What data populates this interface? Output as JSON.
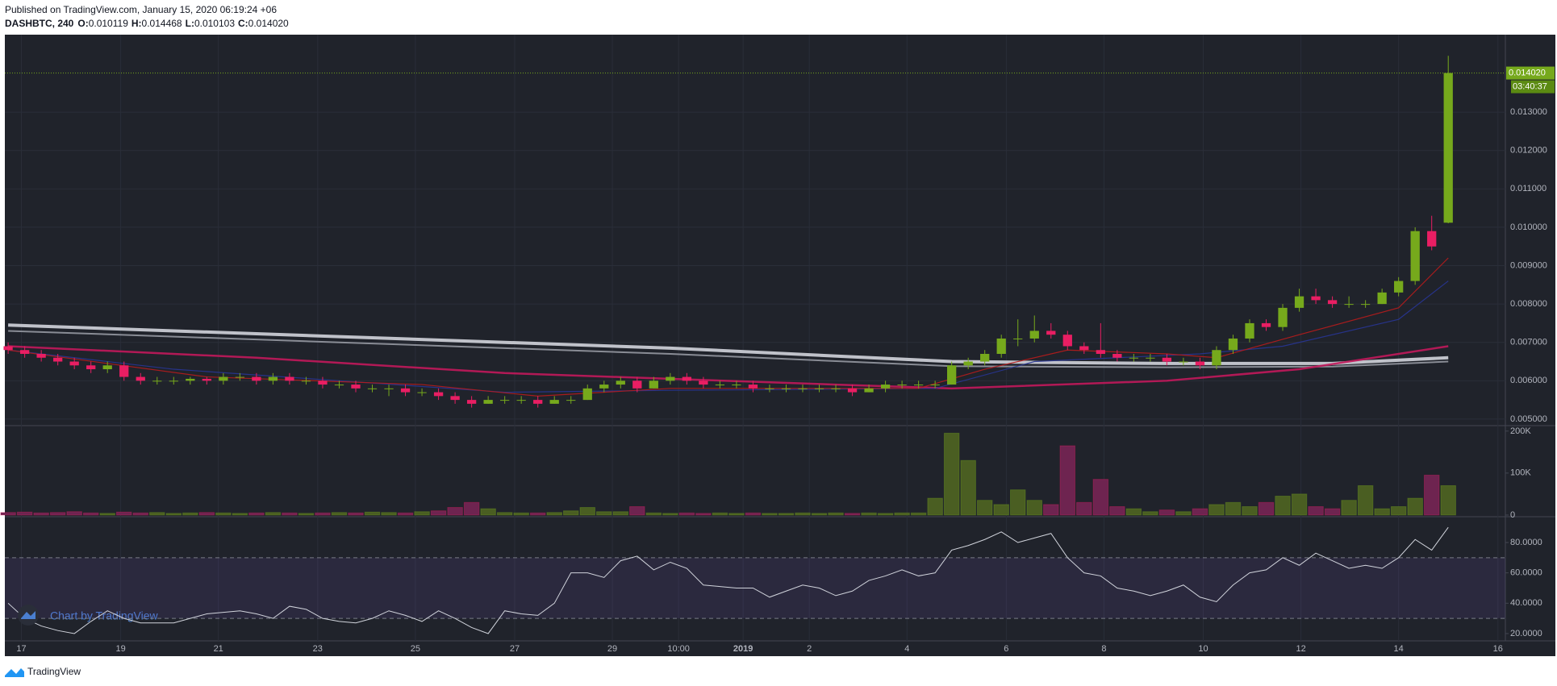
{
  "chart_data": {
    "type": "candlestick",
    "published": "Published on TradingView.com, January 15, 2020 06:19:24 +06",
    "symbol": "DASHBTC, 240",
    "ohlc": [
      {
        "label": "O:",
        "value": "0.010119"
      },
      {
        "label": "H:",
        "value": "0.014468"
      },
      {
        "label": "L:",
        "value": "0.010103"
      },
      {
        "label": "C:",
        "value": "0.014020"
      }
    ],
    "last_price": {
      "value": 0.01402,
      "label": "0.014020"
    },
    "countdown": "03:40:37",
    "watermark": "Chart by TradingView",
    "footer": "TradingView",
    "up_color": "#76a91c",
    "down_color": "#e91e63",
    "grid": true,
    "xlim": [
      -0.2,
      90.45
    ],
    "xticks": [
      {
        "value": 0.8,
        "label": "17"
      },
      {
        "value": 6.8,
        "label": "19"
      },
      {
        "value": 12.7,
        "label": "21"
      },
      {
        "value": 18.7,
        "label": "23"
      },
      {
        "value": 24.6,
        "label": "25"
      },
      {
        "value": 30.6,
        "label": "27"
      },
      {
        "value": 36.5,
        "label": "29"
      },
      {
        "value": 40.5,
        "label": "10:00"
      },
      {
        "value": 44.4,
        "label": "2019"
      },
      {
        "value": 48.4,
        "label": "2"
      },
      {
        "value": 54.3,
        "label": "4"
      },
      {
        "value": 60.3,
        "label": "6"
      },
      {
        "value": 66.2,
        "label": "8"
      },
      {
        "value": 72.2,
        "label": "10"
      },
      {
        "value": 78.1,
        "label": "12"
      },
      {
        "value": 84,
        "label": "14"
      },
      {
        "value": 90,
        "label": "16"
      }
    ],
    "ylim": [
      0.00483,
      0.01502
    ],
    "yticks": [
      {
        "value": 0.005,
        "label": "0.005000"
      },
      {
        "value": 0.006,
        "label": "0.006000"
      },
      {
        "value": 0.007,
        "label": "0.007000"
      },
      {
        "value": 0.008,
        "label": "0.008000"
      },
      {
        "value": 0.009,
        "label": "0.009000"
      },
      {
        "value": 0.01,
        "label": "0.010000"
      },
      {
        "value": 0.011,
        "label": "0.011000"
      },
      {
        "value": 0.012,
        "label": "0.012000"
      },
      {
        "value": 0.013,
        "label": "0.013000"
      }
    ],
    "candles": [
      [
        0.0069,
        0.007,
        0.0067,
        0.0068
      ],
      [
        0.0068,
        0.0069,
        0.0066,
        0.0067
      ],
      [
        0.0067,
        0.0068,
        0.0065,
        0.0066
      ],
      [
        0.0066,
        0.0067,
        0.0064,
        0.0065
      ],
      [
        0.0065,
        0.0066,
        0.0063,
        0.0064
      ],
      [
        0.0064,
        0.0065,
        0.0062,
        0.0063
      ],
      [
        0.0063,
        0.0065,
        0.0062,
        0.0064
      ],
      [
        0.0064,
        0.0065,
        0.006,
        0.0061
      ],
      [
        0.0061,
        0.0062,
        0.0059,
        0.006
      ],
      [
        0.006,
        0.0061,
        0.0059,
        0.006
      ],
      [
        0.006,
        0.0061,
        0.0059,
        0.006
      ],
      [
        0.006,
        0.0061,
        0.0059,
        0.00605
      ],
      [
        0.00605,
        0.0061,
        0.0059,
        0.006
      ],
      [
        0.006,
        0.0062,
        0.0059,
        0.0061
      ],
      [
        0.0061,
        0.0062,
        0.006,
        0.0061
      ],
      [
        0.0061,
        0.0062,
        0.0059,
        0.006
      ],
      [
        0.006,
        0.0062,
        0.0059,
        0.0061
      ],
      [
        0.0061,
        0.0062,
        0.0059,
        0.006
      ],
      [
        0.006,
        0.0061,
        0.0059,
        0.006
      ],
      [
        0.006,
        0.0061,
        0.0058,
        0.0059
      ],
      [
        0.0059,
        0.006,
        0.0058,
        0.0059
      ],
      [
        0.0059,
        0.006,
        0.0057,
        0.0058
      ],
      [
        0.0058,
        0.0059,
        0.0057,
        0.0058
      ],
      [
        0.0058,
        0.0059,
        0.0056,
        0.0058
      ],
      [
        0.0058,
        0.0059,
        0.0056,
        0.0057
      ],
      [
        0.0057,
        0.0058,
        0.0056,
        0.0057
      ],
      [
        0.0057,
        0.0058,
        0.0055,
        0.0056
      ],
      [
        0.0056,
        0.0057,
        0.0054,
        0.0055
      ],
      [
        0.0055,
        0.0056,
        0.0053,
        0.0054
      ],
      [
        0.0054,
        0.0056,
        0.0054,
        0.0055
      ],
      [
        0.0055,
        0.0056,
        0.0054,
        0.0055
      ],
      [
        0.0055,
        0.0056,
        0.0054,
        0.0055
      ],
      [
        0.0055,
        0.0056,
        0.0053,
        0.0054
      ],
      [
        0.0054,
        0.0056,
        0.0054,
        0.0055
      ],
      [
        0.0055,
        0.0056,
        0.0054,
        0.0055
      ],
      [
        0.0055,
        0.0059,
        0.0055,
        0.0058
      ],
      [
        0.0058,
        0.006,
        0.0057,
        0.0059
      ],
      [
        0.0059,
        0.0061,
        0.0058,
        0.006
      ],
      [
        0.006,
        0.0061,
        0.0057,
        0.0058
      ],
      [
        0.0058,
        0.0061,
        0.0058,
        0.006
      ],
      [
        0.006,
        0.0062,
        0.0059,
        0.0061
      ],
      [
        0.0061,
        0.0062,
        0.0059,
        0.006
      ],
      [
        0.006,
        0.0061,
        0.0058,
        0.0059
      ],
      [
        0.0059,
        0.006,
        0.0058,
        0.0059
      ],
      [
        0.0059,
        0.006,
        0.0058,
        0.0059
      ],
      [
        0.0059,
        0.006,
        0.0057,
        0.0058
      ],
      [
        0.0058,
        0.0059,
        0.0057,
        0.0058
      ],
      [
        0.0058,
        0.0059,
        0.0057,
        0.0058
      ],
      [
        0.0058,
        0.0059,
        0.0057,
        0.0058
      ],
      [
        0.0058,
        0.0059,
        0.0057,
        0.0058
      ],
      [
        0.0058,
        0.0059,
        0.0057,
        0.0058
      ],
      [
        0.0058,
        0.0059,
        0.0056,
        0.0057
      ],
      [
        0.0057,
        0.0059,
        0.0057,
        0.0058
      ],
      [
        0.0058,
        0.006,
        0.0057,
        0.0059
      ],
      [
        0.0059,
        0.006,
        0.0058,
        0.0059
      ],
      [
        0.0059,
        0.006,
        0.0058,
        0.0059
      ],
      [
        0.0059,
        0.006,
        0.0058,
        0.0059
      ],
      [
        0.0059,
        0.0065,
        0.0059,
        0.0064
      ],
      [
        0.0064,
        0.0066,
        0.0063,
        0.0065
      ],
      [
        0.0065,
        0.0068,
        0.0064,
        0.0067
      ],
      [
        0.0067,
        0.0072,
        0.0066,
        0.0071
      ],
      [
        0.0071,
        0.0076,
        0.0069,
        0.0071
      ],
      [
        0.0071,
        0.0077,
        0.007,
        0.0073
      ],
      [
        0.0073,
        0.0075,
        0.0071,
        0.0072
      ],
      [
        0.0072,
        0.0073,
        0.0068,
        0.0069
      ],
      [
        0.0069,
        0.007,
        0.0067,
        0.0068
      ],
      [
        0.0068,
        0.0075,
        0.0066,
        0.0067
      ],
      [
        0.0067,
        0.0068,
        0.0065,
        0.0066
      ],
      [
        0.0066,
        0.0067,
        0.0065,
        0.0066
      ],
      [
        0.0066,
        0.0067,
        0.0065,
        0.0066
      ],
      [
        0.0066,
        0.0067,
        0.0064,
        0.0065
      ],
      [
        0.0065,
        0.0066,
        0.0064,
        0.0065
      ],
      [
        0.0065,
        0.0066,
        0.0063,
        0.0064
      ],
      [
        0.0064,
        0.0069,
        0.0063,
        0.0068
      ],
      [
        0.0068,
        0.0072,
        0.0067,
        0.0071
      ],
      [
        0.0071,
        0.0076,
        0.007,
        0.0075
      ],
      [
        0.0075,
        0.0076,
        0.0073,
        0.0074
      ],
      [
        0.0074,
        0.008,
        0.0073,
        0.0079
      ],
      [
        0.0079,
        0.0084,
        0.0078,
        0.0082
      ],
      [
        0.0082,
        0.0084,
        0.008,
        0.0081
      ],
      [
        0.0081,
        0.0082,
        0.0079,
        0.008
      ],
      [
        0.008,
        0.0082,
        0.0079,
        0.008
      ],
      [
        0.008,
        0.0081,
        0.0079,
        0.008
      ],
      [
        0.008,
        0.0084,
        0.008,
        0.0083
      ],
      [
        0.0083,
        0.0087,
        0.0082,
        0.0086
      ],
      [
        0.0086,
        0.01,
        0.0085,
        0.0099
      ],
      [
        0.0099,
        0.0103,
        0.0094,
        0.0095
      ],
      [
        0.010119,
        0.014468,
        0.010103,
        0.01402
      ]
    ],
    "moving_averages": [
      {
        "color": "#d1d4dc",
        "x": [
          0,
          20,
          40,
          57,
          70,
          80,
          87
        ],
        "values": [
          0.00745,
          0.00715,
          0.00685,
          0.0065,
          0.00645,
          0.00645,
          0.0066
        ]
      },
      {
        "color": "#9598a1",
        "x": [
          0,
          20,
          40,
          57,
          70,
          80,
          87
        ],
        "values": [
          0.0073,
          0.007,
          0.0067,
          0.00638,
          0.00635,
          0.00637,
          0.0065
        ]
      },
      {
        "color": "#c2185b",
        "x": [
          0,
          15,
          30,
          50,
          57,
          70,
          78,
          87
        ],
        "values": [
          0.0069,
          0.0066,
          0.0062,
          0.0059,
          0.0058,
          0.006,
          0.0063,
          0.0069
        ]
      },
      {
        "color": "#283593",
        "x": [
          0,
          10,
          30,
          40,
          56,
          62,
          72,
          77,
          84,
          87
        ],
        "values": [
          0.0068,
          0.0063,
          0.0057,
          0.00575,
          0.0058,
          0.0065,
          0.0067,
          0.0069,
          0.0076,
          0.0086
        ]
      },
      {
        "color": "#b71c1c",
        "x": [
          0,
          12,
          25,
          32,
          40,
          55,
          59,
          64,
          70,
          73,
          78,
          84,
          87
        ],
        "values": [
          0.0068,
          0.0061,
          0.0059,
          0.0056,
          0.0058,
          0.0058,
          0.0063,
          0.0068,
          0.0067,
          0.0066,
          0.0072,
          0.0079,
          0.0092
        ]
      }
    ],
    "volume": {
      "ylim": [
        -4000,
        213000
      ],
      "yticks": [
        0,
        {
          "value": 100000,
          "label": "100K"
        },
        {
          "value": 200000,
          "label": "200K"
        }
      ],
      "up_color": "#4a5e22",
      "down_color": "#6e2450",
      "values": [
        6000,
        7000,
        5000,
        6000,
        8000,
        5000,
        4000,
        7000,
        5000,
        6000,
        4000,
        5000,
        6000,
        5000,
        4000,
        5000,
        6000,
        5000,
        4000,
        5000,
        6000,
        5000,
        7000,
        6000,
        5000,
        8000,
        10000,
        18000,
        30000,
        15000,
        6000,
        5000,
        5000,
        6000,
        10000,
        18000,
        8000,
        8000,
        20000,
        5000,
        4000,
        5000,
        4000,
        5000,
        4000,
        5000,
        4000,
        4000,
        5000,
        4000,
        5000,
        4000,
        5000,
        4000,
        5000,
        5000,
        40000,
        195000,
        130000,
        35000,
        25000,
        60000,
        35000,
        25000,
        165000,
        30000,
        85000,
        20000,
        15000,
        8000,
        12000,
        8000,
        15000,
        25000,
        30000,
        20000,
        30000,
        45000,
        50000,
        20000,
        15000,
        35000,
        70000,
        15000,
        20000,
        40000,
        95000,
        70000
      ]
    },
    "rsi": {
      "color": "#d1d4dc",
      "ylim": [
        15.2,
        97
      ],
      "yticks": [
        {
          "value": 20,
          "label": "20.0000"
        },
        {
          "value": 40,
          "label": "40.0000"
        },
        {
          "value": 60,
          "label": "60.0000"
        },
        {
          "value": 80,
          "label": "80.0000"
        }
      ],
      "bands": [
        30,
        70
      ],
      "band_color": "#7e57c2",
      "values": [
        40,
        30,
        25,
        22,
        20,
        28,
        35,
        30,
        27,
        27,
        27,
        30,
        33,
        34,
        35,
        33,
        30,
        38,
        36,
        30,
        28,
        27,
        30,
        35,
        32,
        28,
        35,
        30,
        24,
        20,
        35,
        33,
        32,
        40,
        60,
        60,
        57,
        68,
        71,
        62,
        67,
        63,
        52,
        51,
        50,
        50,
        44,
        48,
        52,
        50,
        45,
        48,
        55,
        58,
        62,
        58,
        60,
        75,
        78,
        82,
        87,
        80,
        83,
        86,
        70,
        60,
        58,
        50,
        48,
        45,
        48,
        52,
        44,
        41,
        52,
        60,
        62,
        70,
        65,
        73,
        68,
        63,
        65,
        63,
        70,
        82,
        75,
        90
      ]
    }
  }
}
